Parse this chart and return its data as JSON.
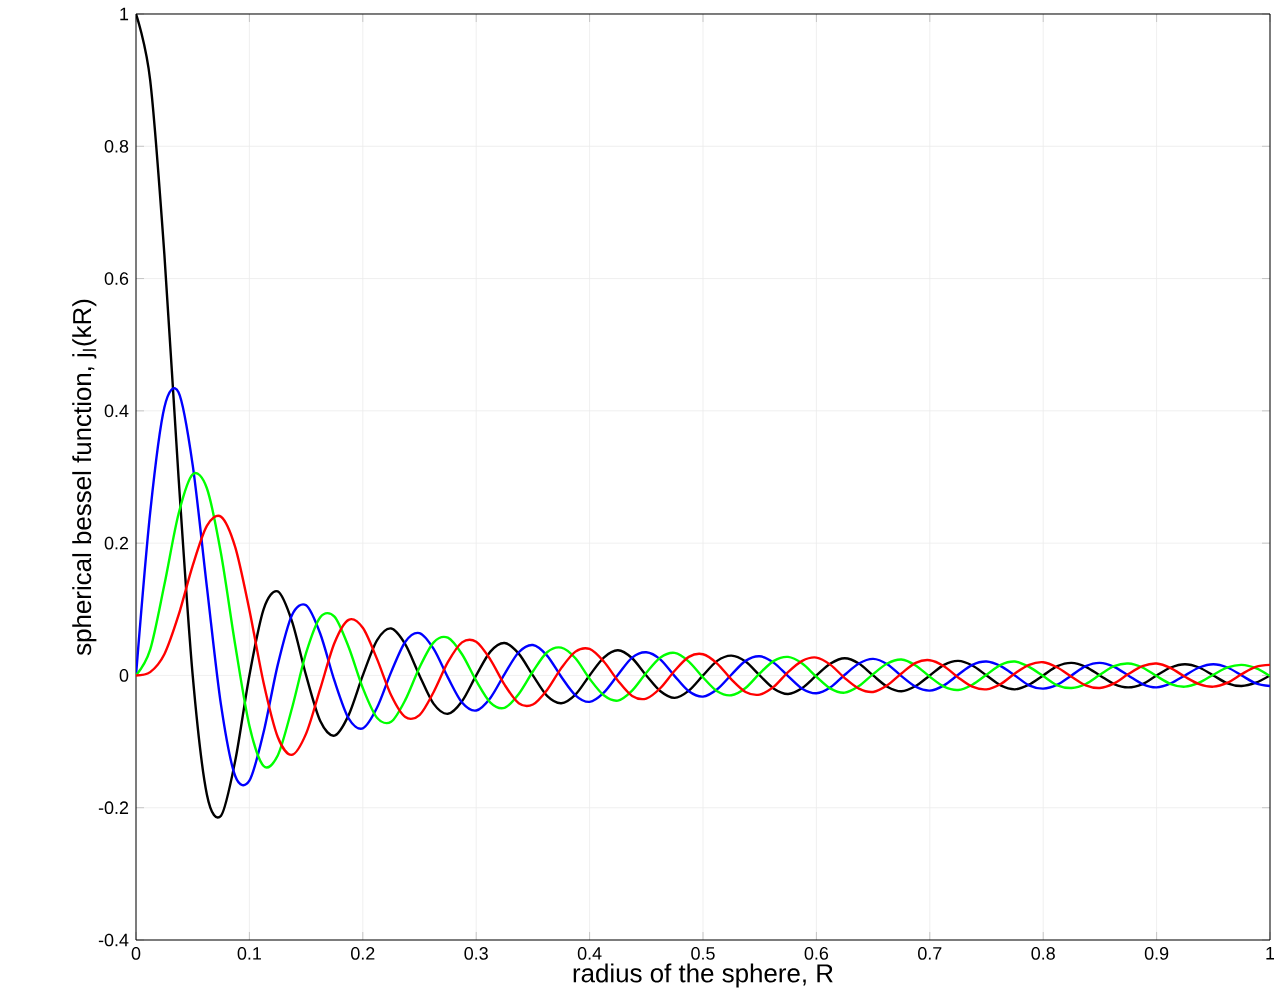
{
  "chart_data": {
    "type": "line",
    "xlabel": "radius of the sphere, R",
    "ylabel": "spherical bessel function, j$_{l}$(kR)",
    "x": [
      0,
      0.0125,
      0.025,
      0.0375,
      0.05,
      0.0625,
      0.075,
      0.0875,
      0.1,
      0.1125,
      0.125,
      0.1375,
      0.15,
      0.1625,
      0.175,
      0.1875,
      0.2,
      0.2125,
      0.225,
      0.2375,
      0.25,
      0.2625,
      0.275,
      0.2875,
      0.3,
      0.3125,
      0.325,
      0.3375,
      0.35,
      0.3625,
      0.375,
      0.3875,
      0.4,
      0.4125,
      0.425,
      0.4375,
      0.45,
      0.4625,
      0.475,
      0.4875,
      0.5,
      0.5125,
      0.525,
      0.5375,
      0.55,
      0.5625,
      0.575,
      0.5875,
      0.6,
      0.6125,
      0.625,
      0.6375,
      0.65,
      0.6625,
      0.675,
      0.6875,
      0.7,
      0.7125,
      0.725,
      0.7375,
      0.75,
      0.7625,
      0.775,
      0.7875,
      0.8,
      0.8125,
      0.825,
      0.8375,
      0.85,
      0.8625,
      0.875,
      0.8875,
      0.9,
      0.9125,
      0.925,
      0.9375,
      0.95,
      0.9625,
      0.975,
      0.9875,
      1
    ],
    "series": [
      {
        "color": "#000000",
        "values": [
          1,
          0.9,
          0.637,
          0.3,
          0,
          -0.18,
          -0.212,
          -0.129,
          0,
          0.1,
          0.127,
          0.082,
          0,
          -0.069,
          -0.091,
          -0.06,
          0,
          0.053,
          0.071,
          0.047,
          0,
          -0.043,
          -0.058,
          -0.039,
          0,
          0.036,
          0.049,
          0.033,
          0,
          -0.031,
          -0.042,
          -0.029,
          0,
          0.027,
          0.038,
          0.026,
          0,
          -0.024,
          -0.034,
          -0.023,
          0,
          0.022,
          0.03,
          0.021,
          0,
          -0.02,
          -0.028,
          -0.019,
          0,
          0.018,
          0.026,
          0.018,
          0,
          -0.017,
          -0.024,
          -0.016,
          0,
          0.016,
          0.022,
          0.015,
          0,
          -0.015,
          -0.021,
          -0.014,
          0,
          0.014,
          0.019,
          0.013,
          0,
          -0.013,
          -0.018,
          -0.013,
          0,
          0.012,
          0.017,
          0.012,
          0,
          -0.012,
          -0.016,
          -0.011,
          0
        ]
      },
      {
        "color": "#0000ff",
        "values": [
          0,
          0.246,
          0.405,
          0.428,
          0.318,
          0.134,
          -0.045,
          -0.152,
          -0.159,
          -0.086,
          0.016,
          0.091,
          0.106,
          0.063,
          -0.008,
          -0.065,
          -0.08,
          -0.049,
          0.005,
          0.051,
          0.064,
          0.04,
          -0.003,
          -0.041,
          -0.053,
          -0.034,
          0.002,
          0.035,
          0.046,
          0.03,
          -0.002,
          -0.03,
          -0.04,
          -0.026,
          0.001,
          0.027,
          0.035,
          0.024,
          -0.001,
          -0.024,
          -0.032,
          -0.021,
          0.001,
          0.022,
          0.029,
          0.019,
          -0.001,
          -0.02,
          -0.027,
          -0.018,
          0.001,
          0.018,
          0.025,
          0.017,
          -0.001,
          -0.017,
          -0.023,
          -0.015,
          0.001,
          0.016,
          0.021,
          0.014,
          0,
          -0.015,
          -0.02,
          -0.014,
          0,
          0.014,
          0.019,
          0.013,
          0,
          -0.013,
          -0.018,
          -0.012,
          0,
          0.012,
          0.017,
          0.012,
          0,
          -0.012,
          -0.016
        ]
      },
      {
        "color": "#00ff00",
        "values": [
          0,
          0.039,
          0.137,
          0.244,
          0.304,
          0.283,
          0.184,
          0.046,
          -0.076,
          -0.137,
          -0.121,
          -0.05,
          0.034,
          0.088,
          0.089,
          0.043,
          -0.019,
          -0.064,
          -0.07,
          -0.037,
          0.012,
          0.05,
          0.057,
          0.032,
          -0.008,
          -0.041,
          -0.049,
          -0.028,
          0.006,
          0.035,
          0.042,
          0.026,
          -0.005,
          -0.03,
          -0.038,
          -0.023,
          0.004,
          0.027,
          0.034,
          0.021,
          -0.003,
          -0.024,
          -0.03,
          -0.019,
          0.003,
          0.022,
          0.028,
          0.018,
          -0.002,
          -0.02,
          -0.026,
          -0.016,
          0.002,
          0.018,
          0.024,
          0.015,
          -0.002,
          -0.017,
          -0.022,
          -0.014,
          0.001,
          0.016,
          0.021,
          0.013,
          -0.001,
          -0.015,
          -0.019,
          -0.013,
          0.001,
          0.014,
          0.018,
          0.012,
          -0.001,
          -0.013,
          -0.017,
          -0.011,
          0.001,
          0.012,
          0.016,
          0.011,
          -0.001
        ]
      },
      {
        "color": "#ff0000",
        "values": [
          0,
          0.005,
          0.032,
          0.091,
          0.166,
          0.226,
          0.24,
          0.194,
          0.099,
          -0.011,
          -0.093,
          -0.12,
          -0.088,
          -0.02,
          0.049,
          0.084,
          0.072,
          0.025,
          -0.03,
          -0.063,
          -0.06,
          -0.025,
          0.02,
          0.05,
          0.051,
          0.024,
          -0.014,
          -0.042,
          -0.044,
          -0.022,
          0.011,
          0.036,
          0.04,
          0.021,
          -0.008,
          -0.031,
          -0.035,
          -0.019,
          0.007,
          0.028,
          0.032,
          0.018,
          -0.006,
          -0.025,
          -0.029,
          -0.017,
          0.005,
          0.022,
          0.027,
          0.016,
          -0.004,
          -0.02,
          -0.025,
          -0.015,
          0.003,
          0.019,
          0.023,
          0.014,
          -0.003,
          -0.017,
          -0.021,
          -0.013,
          0.003,
          0.016,
          0.02,
          0.012,
          -0.002,
          -0.015,
          -0.019,
          -0.012,
          0.002,
          0.014,
          0.018,
          0.011,
          -0.002,
          -0.013,
          -0.017,
          -0.011,
          0.002,
          0.013,
          0.016
        ]
      }
    ],
    "xlim": [
      0,
      1
    ],
    "xticks": [
      0,
      0.1,
      0.2,
      0.3,
      0.4,
      0.5,
      0.6,
      0.7,
      0.8,
      0.9,
      1
    ],
    "ylim": [
      -0.4,
      1
    ],
    "yticks": [
      -0.4,
      -0.2,
      0,
      0.2,
      0.4,
      0.6,
      0.8,
      1
    ],
    "grid": true,
    "line_style": "solid"
  }
}
